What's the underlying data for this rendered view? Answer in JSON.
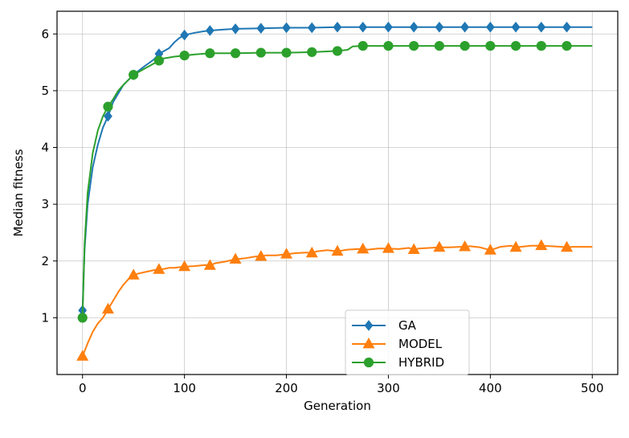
{
  "chart_data": {
    "type": "line",
    "xlabel": "Generation",
    "ylabel": "Median fitness",
    "xlim": [
      -25,
      525
    ],
    "ylim": [
      0,
      6.4
    ],
    "xticks": [
      0,
      100,
      200,
      300,
      400,
      500
    ],
    "yticks": [
      1,
      2,
      3,
      4,
      5,
      6
    ],
    "grid": true,
    "legend_position": "bottom-center",
    "series": [
      {
        "name": "GA",
        "color": "#1f77b4",
        "marker": "diamond",
        "x": [
          0,
          2,
          5,
          10,
          15,
          20,
          25,
          30,
          40,
          50,
          60,
          70,
          75,
          80,
          85,
          90,
          95,
          100,
          110,
          120,
          125,
          140,
          150,
          175,
          200,
          225,
          250,
          275,
          300,
          325,
          350,
          375,
          400,
          425,
          450,
          475,
          500
        ],
        "y": [
          1.13,
          2.2,
          3.0,
          3.65,
          4.05,
          4.35,
          4.55,
          4.8,
          5.1,
          5.28,
          5.42,
          5.55,
          5.65,
          5.7,
          5.75,
          5.85,
          5.93,
          5.98,
          6.02,
          6.05,
          6.06,
          6.08,
          6.09,
          6.1,
          6.11,
          6.11,
          6.12,
          6.12,
          6.12,
          6.12,
          6.12,
          6.12,
          6.12,
          6.12,
          6.12,
          6.12,
          6.12
        ],
        "markers_x": [
          0,
          25,
          50,
          75,
          100,
          125,
          150,
          175,
          200,
          225,
          250,
          275,
          300,
          325,
          350,
          375,
          400,
          425,
          450,
          475
        ],
        "markers_y": [
          1.13,
          4.55,
          5.28,
          5.65,
          5.98,
          6.06,
          6.09,
          6.1,
          6.11,
          6.11,
          6.12,
          6.12,
          6.12,
          6.12,
          6.12,
          6.12,
          6.12,
          6.12,
          6.12,
          6.12
        ]
      },
      {
        "name": "MODEL",
        "color": "#ff7f0e",
        "marker": "triangle",
        "x": [
          0,
          5,
          10,
          15,
          20,
          25,
          30,
          35,
          40,
          45,
          50,
          55,
          60,
          65,
          70,
          75,
          80,
          85,
          90,
          95,
          100,
          110,
          120,
          125,
          130,
          140,
          150,
          160,
          170,
          175,
          180,
          190,
          200,
          210,
          220,
          225,
          230,
          240,
          250,
          260,
          270,
          275,
          280,
          290,
          300,
          310,
          320,
          325,
          330,
          340,
          350,
          360,
          370,
          375,
          380,
          390,
          400,
          410,
          420,
          425,
          430,
          440,
          450,
          460,
          470,
          475,
          480,
          490,
          500
        ],
        "y": [
          0.32,
          0.55,
          0.75,
          0.9,
          1.0,
          1.15,
          1.3,
          1.45,
          1.58,
          1.68,
          1.75,
          1.78,
          1.8,
          1.82,
          1.84,
          1.85,
          1.86,
          1.88,
          1.88,
          1.89,
          1.9,
          1.91,
          1.93,
          1.92,
          1.96,
          1.99,
          2.03,
          2.05,
          2.08,
          2.08,
          2.1,
          2.1,
          2.12,
          2.14,
          2.15,
          2.14,
          2.17,
          2.19,
          2.17,
          2.2,
          2.21,
          2.21,
          2.2,
          2.22,
          2.22,
          2.21,
          2.23,
          2.2,
          2.22,
          2.23,
          2.24,
          2.24,
          2.25,
          2.25,
          2.26,
          2.24,
          2.19,
          2.25,
          2.27,
          2.24,
          2.25,
          2.27,
          2.27,
          2.26,
          2.25,
          2.24,
          2.25,
          2.25,
          2.25
        ],
        "markers_x": [
          0,
          25,
          50,
          75,
          100,
          125,
          150,
          175,
          200,
          225,
          250,
          275,
          300,
          325,
          350,
          375,
          400,
          425,
          450,
          475
        ],
        "markers_y": [
          0.32,
          1.15,
          1.75,
          1.85,
          1.9,
          1.92,
          2.03,
          2.08,
          2.12,
          2.14,
          2.17,
          2.21,
          2.22,
          2.2,
          2.24,
          2.25,
          2.19,
          2.24,
          2.27,
          2.24
        ]
      },
      {
        "name": "HYBRID",
        "color": "#2ca02c",
        "marker": "circle",
        "x": [
          0,
          2,
          5,
          10,
          15,
          20,
          25,
          30,
          35,
          40,
          50,
          60,
          70,
          75,
          80,
          90,
          100,
          110,
          125,
          150,
          175,
          200,
          225,
          250,
          260,
          265,
          275,
          300,
          325,
          350,
          375,
          400,
          425,
          450,
          475,
          500
        ],
        "y": [
          1.0,
          2.3,
          3.2,
          3.9,
          4.3,
          4.55,
          4.72,
          4.85,
          5.0,
          5.1,
          5.28,
          5.38,
          5.48,
          5.53,
          5.57,
          5.6,
          5.62,
          5.64,
          5.66,
          5.66,
          5.67,
          5.67,
          5.68,
          5.7,
          5.72,
          5.78,
          5.79,
          5.79,
          5.79,
          5.79,
          5.79,
          5.79,
          5.79,
          5.79,
          5.79,
          5.79
        ],
        "markers_x": [
          0,
          25,
          50,
          75,
          100,
          125,
          150,
          175,
          200,
          225,
          250,
          275,
          300,
          325,
          350,
          375,
          400,
          425,
          450,
          475
        ],
        "markers_y": [
          1.0,
          4.72,
          5.28,
          5.53,
          5.62,
          5.66,
          5.66,
          5.67,
          5.67,
          5.68,
          5.7,
          5.79,
          5.79,
          5.79,
          5.79,
          5.79,
          5.79,
          5.79,
          5.79,
          5.79
        ]
      }
    ]
  }
}
